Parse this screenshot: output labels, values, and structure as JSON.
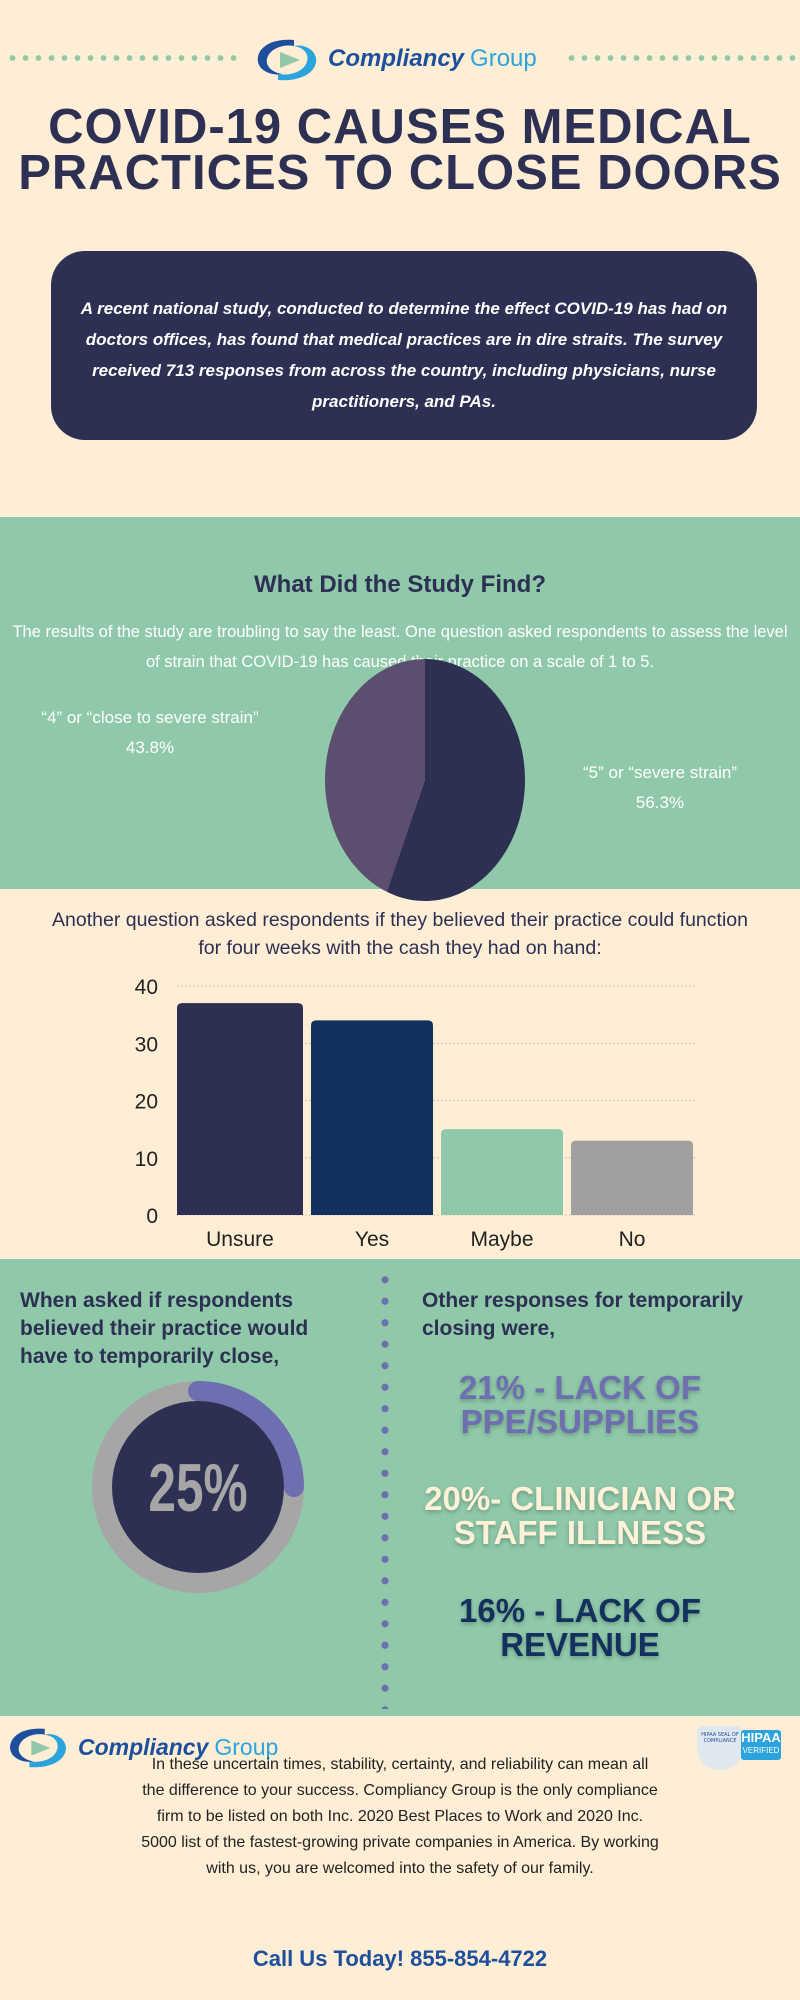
{
  "header": {
    "brand": "Compliancy",
    "brand_suffix": "Group"
  },
  "title": {
    "line1": "COVID-19 CAUSES MEDICAL",
    "line2": "PRACTICES TO CLOSE DOORS"
  },
  "intro": "A recent national study, conducted to determine the effect COVID-19 has had on doctors offices, has found that medical practices are in dire straits. The survey received 713 responses from across the country, including physicians, nurse practitioners, and PAs.",
  "study": {
    "heading": "What Did the Study Find?",
    "text": "The results of the study are troubling to say the least. One question asked respondents to assess the level of strain that COVID-19 has caused their practice on a scale of 1 to 5."
  },
  "colors": {
    "cream": "#ffeed6",
    "green": "#8fc9a9",
    "navy": "#2d2f53",
    "purple": "#6e6fb0",
    "blue": "#1d4f9c"
  },
  "chart_data": [
    {
      "type": "pie",
      "slices": [
        {
          "label": "“4” or “close to severe strain”",
          "value": 43.8,
          "value_label": "43.8%",
          "color": "#5d4d6f"
        },
        {
          "label": "“5” or “severe strain”",
          "value": 56.3,
          "value_label": "56.3%",
          "color": "#2d2f53"
        }
      ]
    },
    {
      "type": "bar",
      "title": "Another question asked respondents if they believed their practice could function for four weeks with the cash they had on hand:",
      "categories": [
        "Unsure",
        "Yes",
        "Maybe",
        "No"
      ],
      "values": [
        37,
        34,
        15,
        13
      ],
      "colors": [
        "#2d2f53",
        "#12305e",
        "#8fc9a9",
        "#a0a0a0"
      ],
      "ylim": [
        0,
        40
      ],
      "yticks": [
        "0",
        "10",
        "20",
        "30",
        "40"
      ],
      "grid": true
    }
  ],
  "closing": {
    "left_text": "When asked if respondents believed their practice would have to temporarily close,",
    "donut_value": 25,
    "donut_label": "25%",
    "right_text": "Other responses for temporarily closing were,",
    "items": [
      {
        "line1": "21% - LACK OF",
        "line2": "PPE/SUPPLIES",
        "color": "#6e6fb0"
      },
      {
        "line1": "20%- CLINICIAN OR",
        "line2": "STAFF ILLNESS",
        "color": "#fff2d9"
      },
      {
        "line1": "16% - LACK OF",
        "line2": "REVENUE",
        "color": "#13305e"
      }
    ]
  },
  "footer": {
    "brand": "Compliancy",
    "brand_suffix": "Group",
    "badge_seal": "HIPAA SEAL OF COMPLIANCE",
    "badge": "HIPAA",
    "badge_sub": "VERIFIED",
    "text": "In these uncertain times, stability, certainty, and reliability can mean all the difference to your success. Compliancy Group is the only compliance firm to be listed on both Inc. 2020 Best Places to Work and 2020 Inc. 5000 list of the fastest-growing private companies in America. By working with us, you are welcomed into the safety of our family.",
    "call": "Call Us Today! 855-854-4722"
  }
}
